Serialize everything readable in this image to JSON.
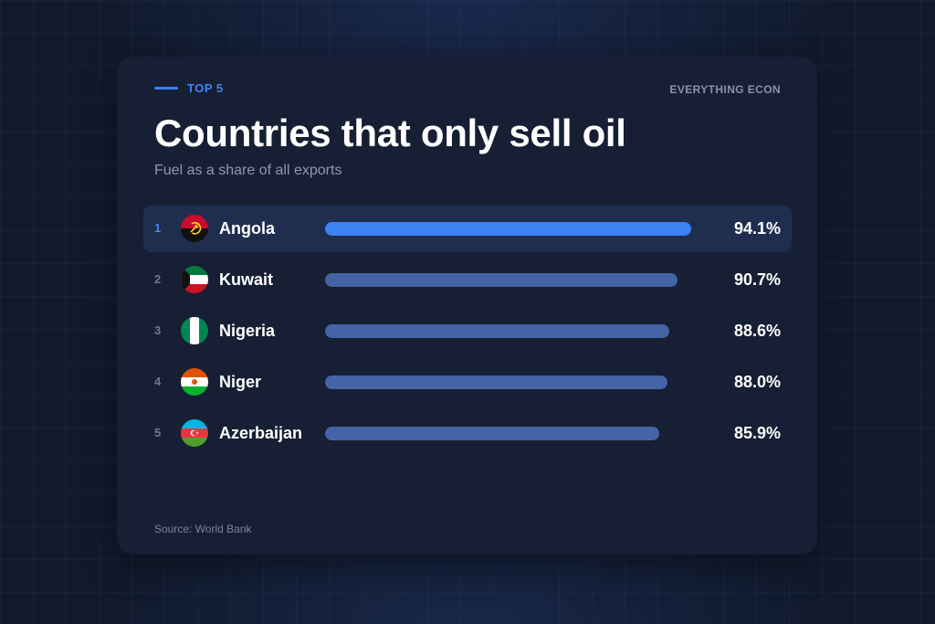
{
  "header": {
    "tag": "TOP 5",
    "brand": "EVERYTHING ECON",
    "title": "Countries that only sell oil",
    "subtitle": "Fuel as a share of all exports"
  },
  "footer": {
    "source": "Source: World Bank"
  },
  "colors": {
    "accent": "#3b82f2",
    "bar": "#4464a8",
    "card": "#161f33",
    "highlight_row": "#1f2e4f"
  },
  "chart_data": {
    "type": "bar",
    "orientation": "horizontal",
    "title": "Countries that only sell oil",
    "subtitle": "Fuel as a share of all exports",
    "unit": "%",
    "xlim": [
      0,
      100
    ],
    "grid": false,
    "ranks": [
      "1",
      "2",
      "3",
      "4",
      "5"
    ],
    "categories": [
      "Angola",
      "Kuwait",
      "Nigeria",
      "Niger",
      "Azerbaijan"
    ],
    "values": [
      94.1,
      90.7,
      88.6,
      88.0,
      85.9
    ],
    "value_labels": [
      "94.1%",
      "90.7%",
      "88.6%",
      "88.0%",
      "85.9%"
    ],
    "flag_icons": [
      "angola-flag-icon",
      "kuwait-flag-icon",
      "nigeria-flag-icon",
      "niger-flag-icon",
      "azerbaijan-flag-icon"
    ],
    "highlighted": "Angola"
  }
}
